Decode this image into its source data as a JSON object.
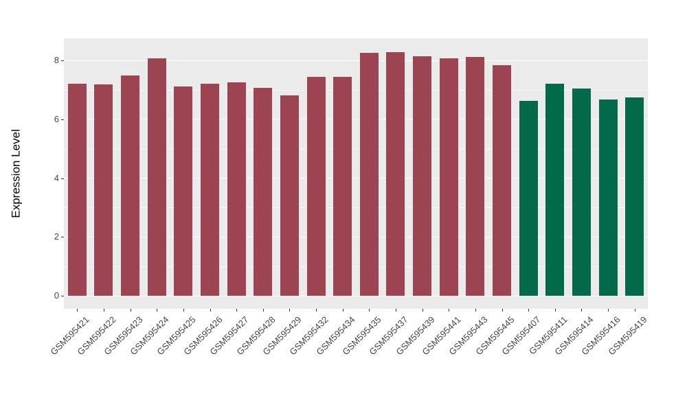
{
  "chart_data": {
    "type": "bar",
    "title": "",
    "xlabel": "",
    "ylabel": "Expression Level",
    "categories": [
      "GSM595421",
      "GSM595422",
      "GSM595423",
      "GSM595424",
      "GSM595425",
      "GSM595426",
      "GSM595427",
      "GSM595428",
      "GSM595429",
      "GSM595432",
      "GSM595434",
      "GSM595435",
      "GSM595437",
      "GSM595439",
      "GSM595441",
      "GSM595443",
      "GSM595445",
      "GSM595407",
      "GSM595411",
      "GSM595414",
      "GSM595416",
      "GSM595419"
    ],
    "values": [
      7.2,
      7.18,
      7.5,
      8.08,
      7.12,
      7.2,
      7.25,
      7.08,
      6.82,
      7.45,
      7.45,
      8.25,
      8.28,
      8.15,
      8.08,
      8.12,
      7.85,
      6.62,
      7.22,
      7.04,
      6.68,
      6.75
    ],
    "bar_groups": [
      0,
      0,
      0,
      0,
      0,
      0,
      0,
      0,
      0,
      0,
      0,
      0,
      0,
      0,
      0,
      0,
      0,
      1,
      1,
      1,
      1,
      1
    ],
    "group_colors": [
      "#9D4452",
      "#026A4A"
    ],
    "yticks": [
      "0",
      "2",
      "4",
      "6",
      "8"
    ],
    "ytick_values": [
      0,
      2,
      4,
      6,
      8
    ],
    "minor_gridline_values": [
      1,
      3,
      5,
      7
    ],
    "ylim": [
      0,
      8.75
    ],
    "grid": "major and minor horizontal, white on gray panel",
    "legend": "none",
    "panel_background": "#EBEBEB",
    "gridline_color": "#FFFFFF",
    "tick_color": "#333333",
    "axis_text_color": "#454545"
  }
}
